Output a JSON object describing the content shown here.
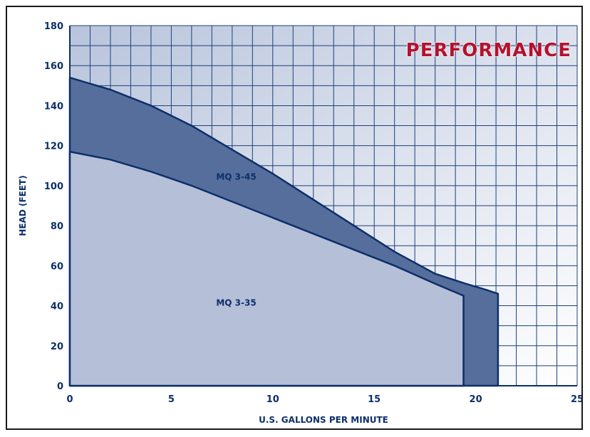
{
  "chart_data": {
    "type": "area",
    "title": "PERFORMANCE",
    "xlabel": "U.S. GALLONS PER MINUTE",
    "ylabel": "HEAD (FEET)",
    "xlim": [
      0,
      25
    ],
    "ylim": [
      0,
      180
    ],
    "x_ticks": [
      0,
      5,
      10,
      15,
      20,
      25
    ],
    "y_ticks": [
      0,
      20,
      40,
      60,
      80,
      100,
      120,
      140,
      160,
      180
    ],
    "grid": true,
    "colors": {
      "outer_band": "#566e9b",
      "inner_area": "#b6bfd8",
      "curve_line": "#0c2f6a",
      "title_color": "#b3122e",
      "text_color": "#0c2f6a"
    },
    "series": [
      {
        "name": "MQ 3-45",
        "x": [
          0,
          2,
          4,
          6,
          8,
          10,
          12,
          14,
          16,
          18,
          19.5,
          20.5,
          21.1,
          21.1
        ],
        "y": [
          154,
          148,
          140,
          130,
          118,
          106,
          93,
          80,
          67,
          56,
          51,
          48,
          46,
          0
        ]
      },
      {
        "name": "MQ 3-35",
        "x": [
          0,
          2,
          4,
          6,
          8,
          10,
          12,
          14,
          16,
          18,
          19.4,
          19.4
        ],
        "y": [
          117,
          113,
          107,
          100,
          92,
          84,
          76,
          68,
          60,
          51,
          45,
          0
        ]
      }
    ]
  }
}
